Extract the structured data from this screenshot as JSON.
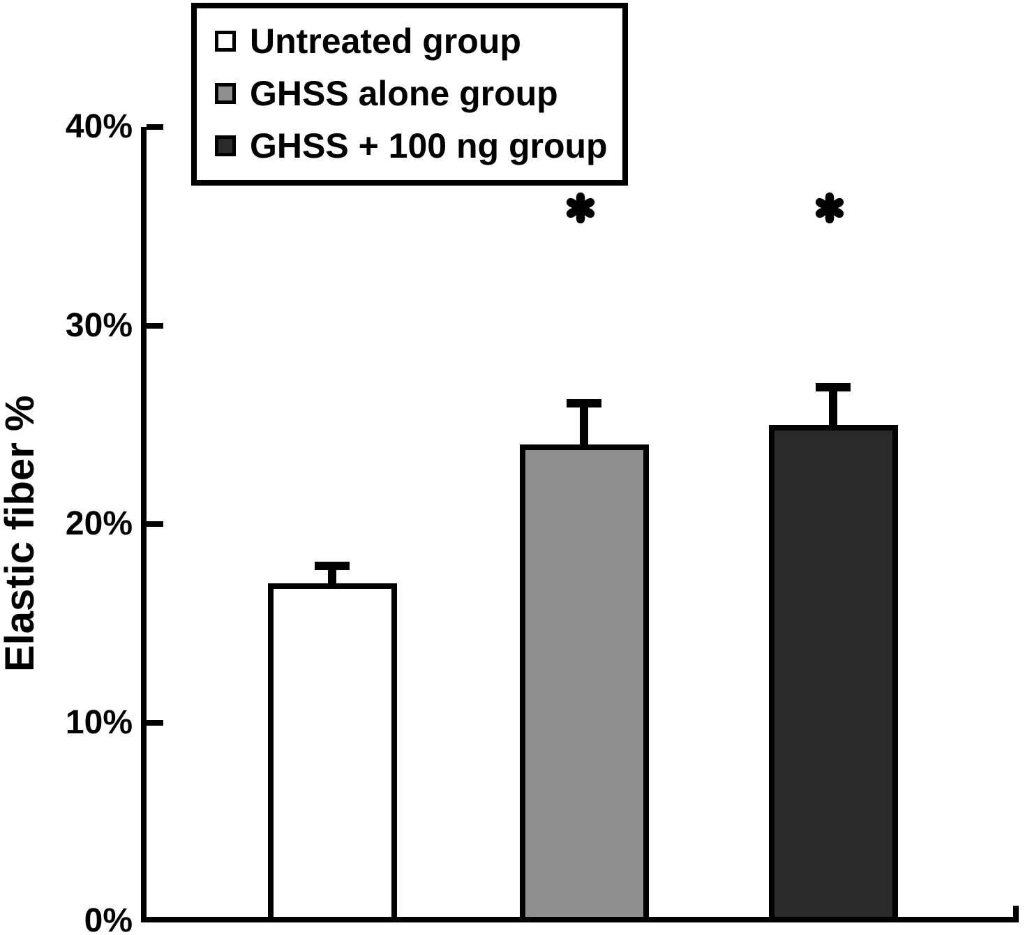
{
  "figure": {
    "background_color": "#ffffff",
    "axis_color": "#000000",
    "text_color": "#000000"
  },
  "chart_data": {
    "type": "bar",
    "title": "",
    "xlabel": "",
    "ylabel": "Elastic fiber %",
    "ylim": [
      0,
      40
    ],
    "grid": false,
    "legend_position": "top-left",
    "significance_marker": "*",
    "yticks": [
      {
        "value": 0,
        "label": "0%"
      },
      {
        "value": 10,
        "label": "10%"
      },
      {
        "value": 20,
        "label": "20%"
      },
      {
        "value": 30,
        "label": "30%"
      },
      {
        "value": 40,
        "label": "40%"
      }
    ],
    "series": [
      {
        "name": "Untreated group",
        "value": 17,
        "error": 1.1,
        "fill": "#ffffff",
        "significant": false
      },
      {
        "name": "GHSS alone group",
        "value": 24,
        "error": 2.3,
        "fill": "#8f8f8f",
        "significant": true
      },
      {
        "name": "GHSS + 100 ng group",
        "value": 25,
        "error": 2.1,
        "fill": "#2a2a2a",
        "significant": true
      }
    ]
  }
}
